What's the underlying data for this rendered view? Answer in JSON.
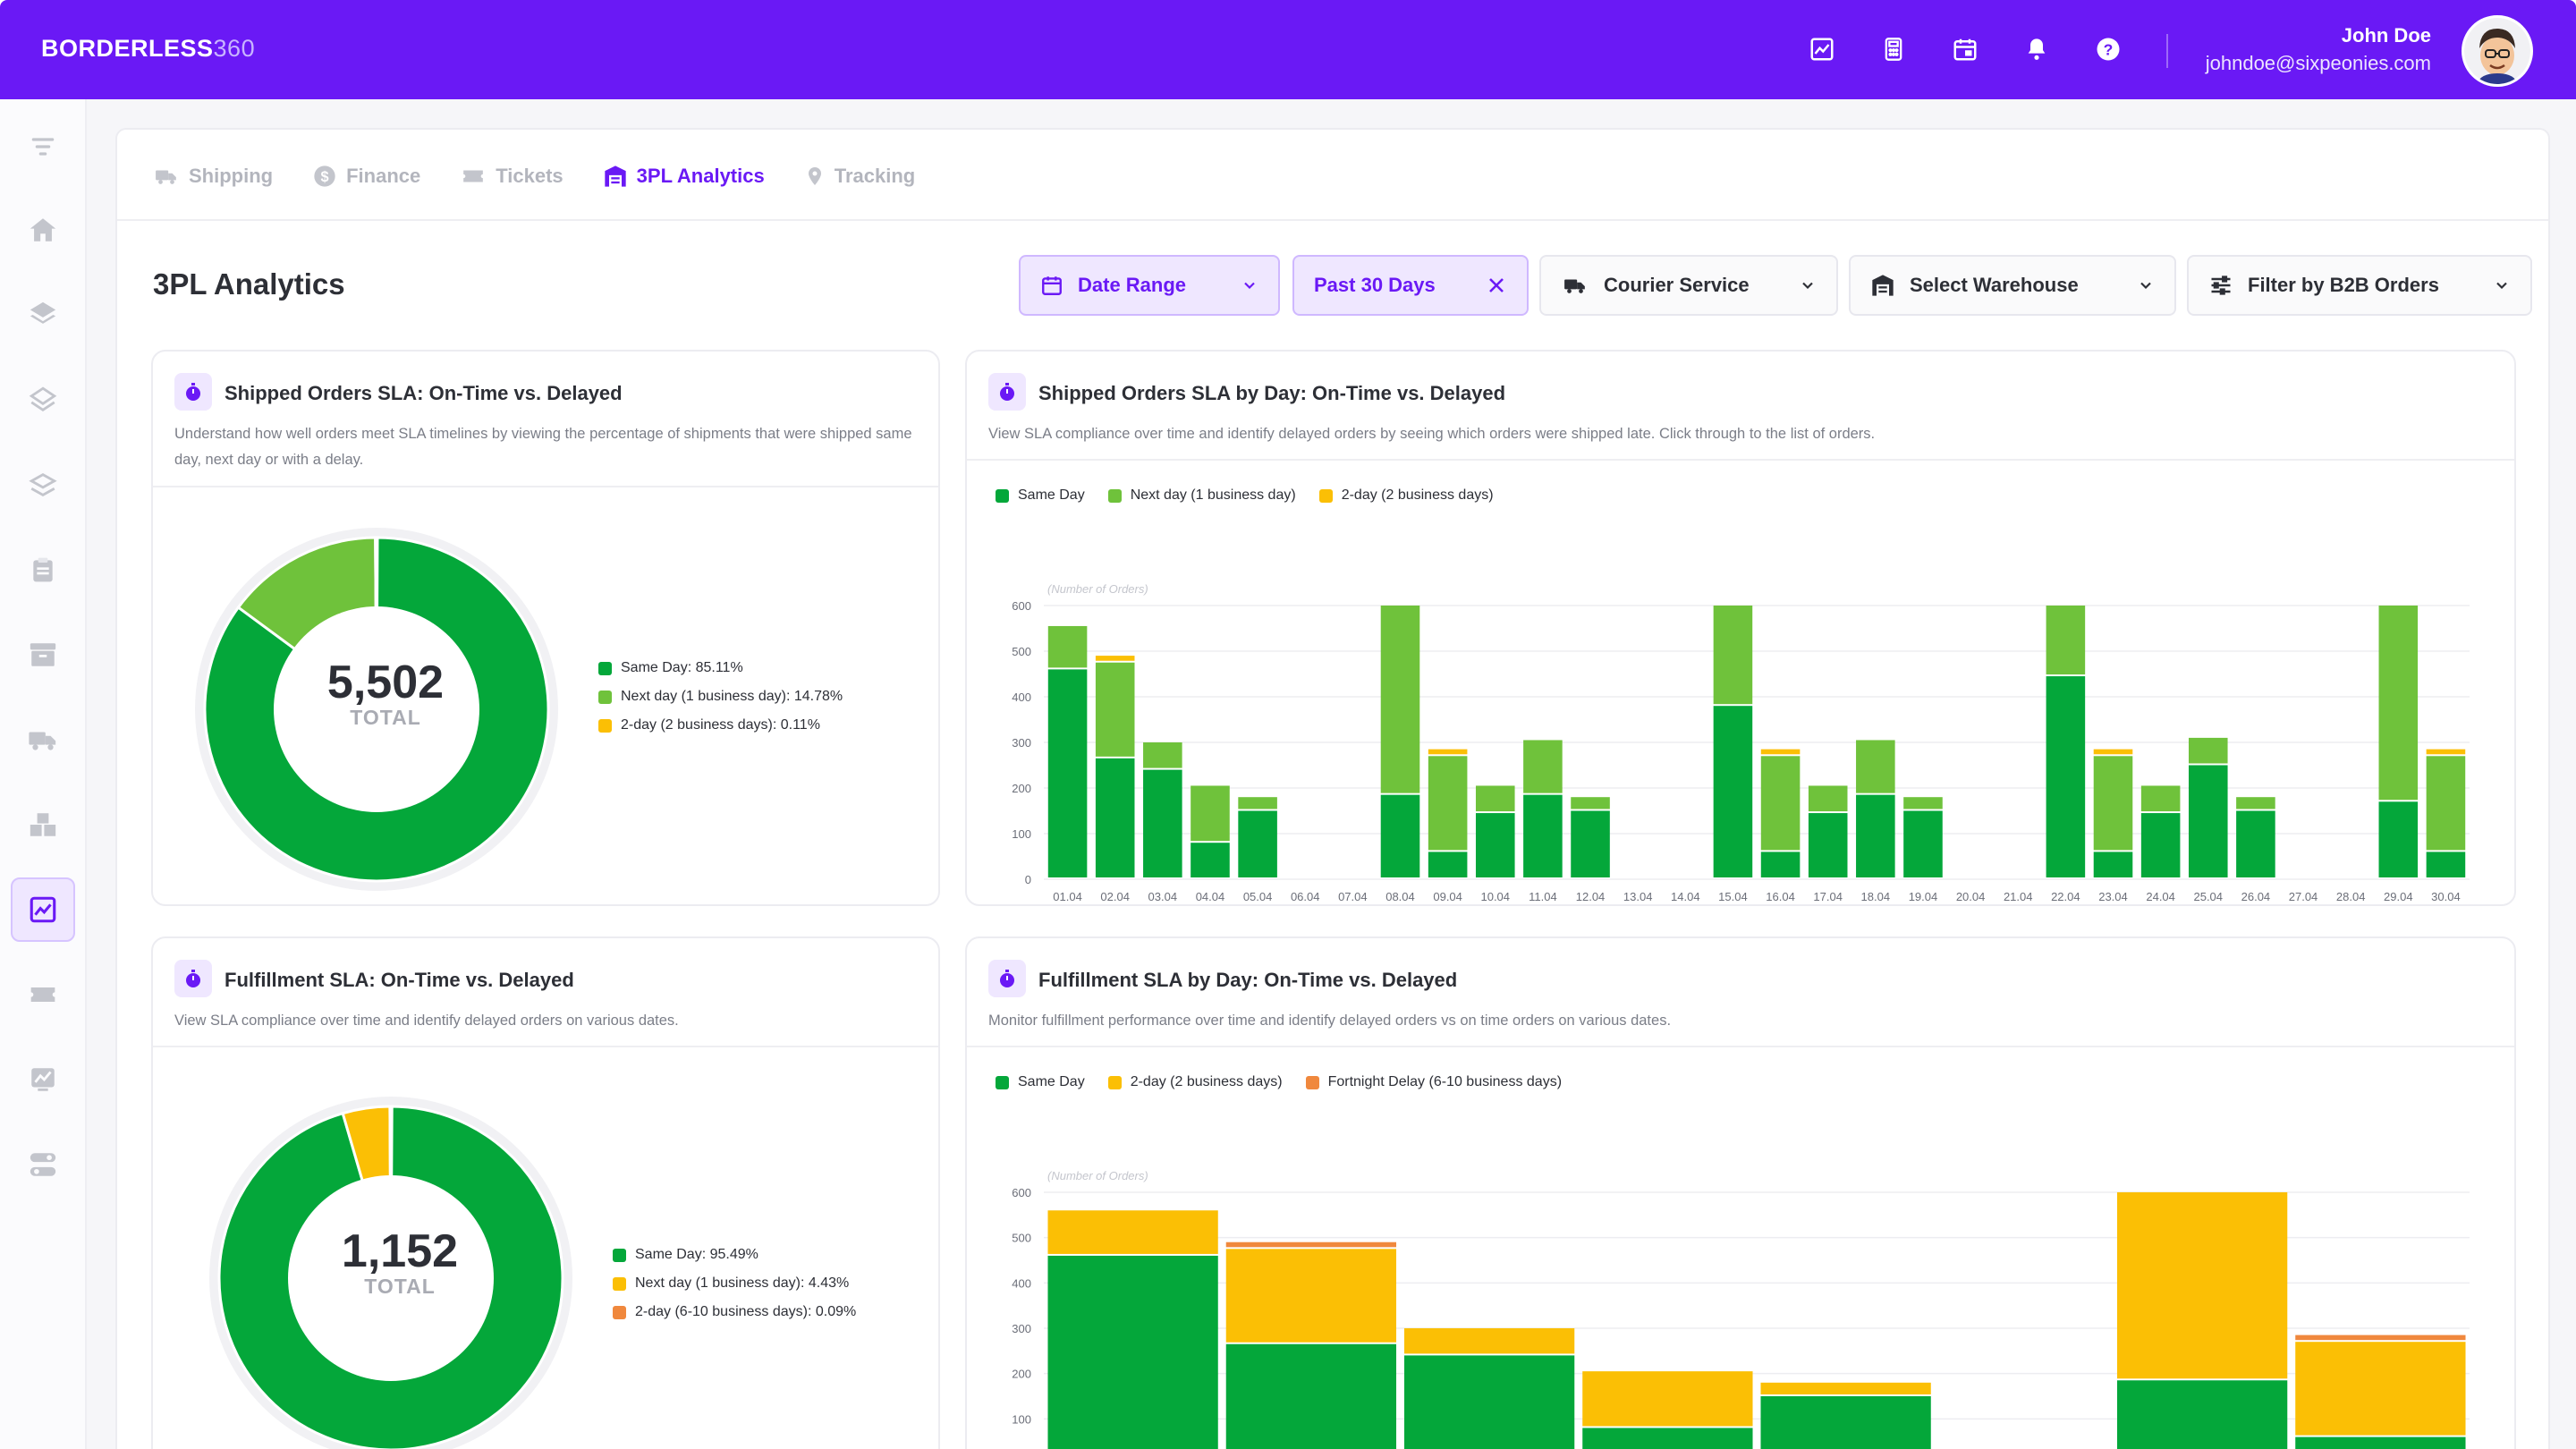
{
  "header": {
    "logo_main": "BORDERLESS",
    "logo_num": "360",
    "user_name": "John Doe",
    "user_email": "johndoe@sixpeonies.com",
    "icons": [
      "analytics-icon",
      "calculator-icon",
      "calendar-icon",
      "bell-icon",
      "help-icon"
    ]
  },
  "sidebar": {
    "icons": [
      "filter-icon",
      "home-icon",
      "layers-icon",
      "layers-outline-icon",
      "stack-icon",
      "clipboard-icon",
      "archive-icon",
      "truck-icon",
      "boxes-icon",
      "analytics-icon",
      "ticket-icon",
      "chart-icon",
      "toggle-icon"
    ],
    "active_index": 9
  },
  "tabs": [
    {
      "label": "Shipping",
      "icon": "truck-icon",
      "active": false
    },
    {
      "label": "Finance",
      "icon": "dollar-icon",
      "active": false
    },
    {
      "label": "Tickets",
      "icon": "ticket-icon",
      "active": false
    },
    {
      "label": "3PL Analytics",
      "icon": "warehouse-icon",
      "active": true
    },
    {
      "label": "Tracking",
      "icon": "pin-icon",
      "active": false
    }
  ],
  "page_title": "3PL Analytics",
  "filters": {
    "date_range": "Date Range",
    "past_days": "Past 30 Days",
    "courier": "Courier Service",
    "warehouse": "Select Warehouse",
    "b2b": "Filter by B2B Orders"
  },
  "colors": {
    "accent": "#6a19f5",
    "same_day": "#04a73a",
    "next_day": "#6fc23b",
    "two_day": "#fbbf05",
    "fortnight": "#f0883d"
  },
  "panels": {
    "shipped_donut": {
      "title": "Shipped Orders SLA: On-Time vs. Delayed",
      "desc": "Understand how well orders meet SLA timelines by viewing the percentage of shipments that were shipped same day, next day or with a delay.",
      "total": "5,502",
      "total_label": "TOTAL",
      "legend": [
        "Same Day: 85.11%",
        "Next day (1 business day): 14.78%",
        "2-day (2 business days): 0.11%"
      ]
    },
    "shipped_bar": {
      "title": "Shipped Orders SLA by Day: On-Time vs. Delayed",
      "desc": "View SLA compliance over time and identify delayed orders by seeing which orders were shipped late. Click through to the list of orders.",
      "legend": [
        "Same Day",
        "Next day (1 business day)",
        "2-day (2 business days)"
      ],
      "y_hint": "(Number of Orders)"
    },
    "fulfill_donut": {
      "title": "Fulfillment SLA: On-Time vs. Delayed",
      "desc": "View SLA compliance over time and identify delayed orders on various dates.",
      "total": "1,152",
      "total_label": "TOTAL",
      "legend": [
        "Same Day: 95.49%",
        "Next day (1 business day): 4.43%",
        "2-day (6-10 business days): 0.09%"
      ]
    },
    "fulfill_bar": {
      "title": "Fulfillment SLA by Day: On-Time vs. Delayed",
      "desc": "Monitor fulfillment performance over time and identify delayed orders vs on time orders on various dates.",
      "legend": [
        "Same Day",
        "2-day (2 business days)",
        "Fortnight Delay (6-10 business days)"
      ],
      "y_hint": "(Number of Orders)"
    }
  },
  "chart_data": [
    {
      "type": "pie",
      "labels": [
        "Same Day",
        "Next day (1 business day)",
        "2-day (2 business days)"
      ],
      "values": [
        85.11,
        14.78,
        0.11
      ],
      "colors": [
        "#04a73a",
        "#6fc23b",
        "#fbbf05"
      ]
    },
    {
      "type": "bar",
      "stacked": true,
      "categories": [
        "01.04",
        "02.04",
        "03.04",
        "04.04",
        "05.04",
        "06.04",
        "07.04",
        "08.04",
        "09.04",
        "10.04",
        "11.04",
        "12.04",
        "13.04",
        "14.04",
        "15.04",
        "16.04",
        "17.04",
        "18.04",
        "19.04",
        "20.04",
        "21.04",
        "22.04",
        "23.04",
        "24.04",
        "25.04",
        "26.04",
        "27.04",
        "28.04",
        "29.04",
        "30.04"
      ],
      "series": [
        {
          "name": "Same Day",
          "color": "#04a73a",
          "values": [
            460,
            265,
            240,
            80,
            150,
            0,
            0,
            185,
            60,
            145,
            185,
            150,
            0,
            0,
            380,
            60,
            145,
            185,
            150,
            0,
            0,
            445,
            60,
            145,
            250,
            150,
            0,
            0,
            170,
            60
          ]
        },
        {
          "name": "Next day (1 business day)",
          "color": "#6fc23b",
          "values": [
            95,
            210,
            60,
            125,
            30,
            0,
            0,
            415,
            210,
            60,
            120,
            30,
            0,
            0,
            220,
            210,
            60,
            120,
            30,
            0,
            0,
            155,
            210,
            60,
            60,
            30,
            0,
            0,
            430,
            210
          ]
        },
        {
          "name": "2-day (2 business days)",
          "color": "#fbbf05",
          "values": [
            0,
            15,
            0,
            0,
            0,
            0,
            0,
            0,
            15,
            0,
            0,
            0,
            0,
            0,
            0,
            15,
            0,
            0,
            0,
            0,
            0,
            0,
            15,
            0,
            0,
            0,
            0,
            0,
            0,
            15
          ]
        }
      ],
      "ylim": [
        0,
        600
      ],
      "yticks": [
        0,
        100,
        200,
        300,
        400,
        500,
        600
      ],
      "legend": "top-left"
    },
    {
      "type": "pie",
      "labels": [
        "Same Day",
        "Next day (1 business day)",
        "2-day (6-10 business days)"
      ],
      "values": [
        95.49,
        4.43,
        0.09
      ],
      "colors": [
        "#04a73a",
        "#fbbf05",
        "#f0883d"
      ]
    },
    {
      "type": "bar",
      "stacked": true,
      "categories": [
        "",
        "",
        "",
        "",
        "",
        "",
        "",
        ""
      ],
      "series": [
        {
          "name": "Same Day",
          "color": "#04a73a",
          "values": [
            460,
            265,
            240,
            80,
            150,
            0,
            185,
            60
          ]
        },
        {
          "name": "2-day (2 business days)",
          "color": "#fbbf05",
          "values": [
            100,
            210,
            60,
            125,
            30,
            0,
            415,
            210
          ]
        },
        {
          "name": "Fortnight Delay (6-10 business days)",
          "color": "#f0883d",
          "values": [
            0,
            15,
            0,
            0,
            0,
            0,
            0,
            15
          ]
        }
      ],
      "ylim": [
        0,
        600
      ],
      "yticks": [
        0,
        100,
        200,
        300,
        400,
        500,
        600
      ],
      "legend": "top-left"
    }
  ]
}
